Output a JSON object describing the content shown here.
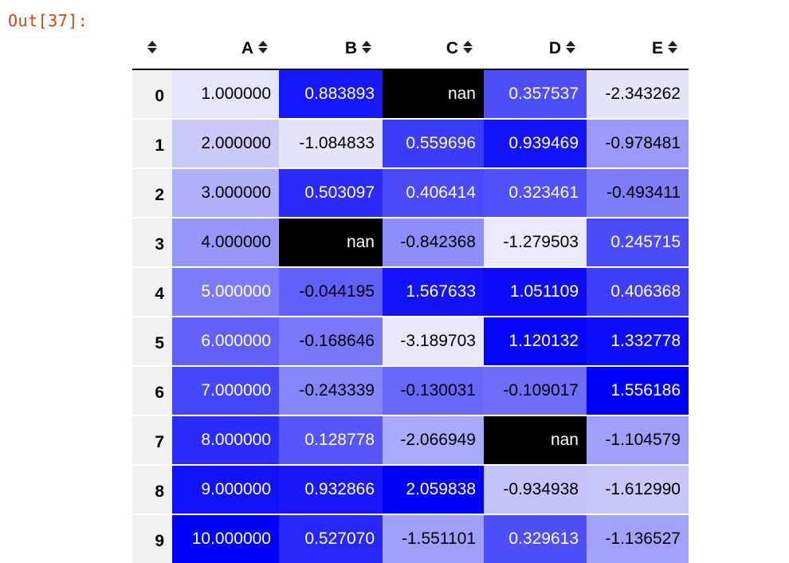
{
  "prompt": {
    "label": "Out[37]:"
  },
  "table": {
    "index_header": "",
    "columns": [
      "A",
      "B",
      "C",
      "D",
      "E"
    ],
    "rows": [
      {
        "index": "0",
        "cells": [
          {
            "text": "1.000000",
            "bg": "#e5e5fc",
            "fg": "#000000"
          },
          {
            "text": "0.883893",
            "bg": "#1717fc",
            "fg": "#ffffff"
          },
          {
            "text": "nan",
            "bg": "#000000",
            "fg": "#ffffff"
          },
          {
            "text": "0.357537",
            "bg": "#4d4dfa",
            "fg": "#ffffff"
          },
          {
            "text": "-2.343262",
            "bg": "#e5e5fa",
            "fg": "#000000"
          }
        ]
      },
      {
        "index": "1",
        "cells": [
          {
            "text": "2.000000",
            "bg": "#cacaf9",
            "fg": "#000000"
          },
          {
            "text": "-1.084833",
            "bg": "#e5e5fa",
            "fg": "#000000"
          },
          {
            "text": "0.559696",
            "bg": "#3b3bfa",
            "fg": "#ffffff"
          },
          {
            "text": "0.939469",
            "bg": "#1313fa",
            "fg": "#ffffff"
          },
          {
            "text": "-0.978481",
            "bg": "#9a9afa",
            "fg": "#000000"
          }
        ]
      },
      {
        "index": "2",
        "cells": [
          {
            "text": "3.000000",
            "bg": "#b1b1fb",
            "fg": "#000000"
          },
          {
            "text": "0.503097",
            "bg": "#2a2afb",
            "fg": "#ffffff"
          },
          {
            "text": "0.406414",
            "bg": "#4a4afa",
            "fg": "#ffffff"
          },
          {
            "text": "0.323461",
            "bg": "#5151fa",
            "fg": "#ffffff"
          },
          {
            "text": "-0.493411",
            "bg": "#7d7dfa",
            "fg": "#000000"
          }
        ]
      },
      {
        "index": "3",
        "cells": [
          {
            "text": "4.000000",
            "bg": "#9797fa",
            "fg": "#000000"
          },
          {
            "text": "nan",
            "bg": "#000000",
            "fg": "#ffffff"
          },
          {
            "text": "-0.842368",
            "bg": "#8e8efa",
            "fg": "#000000"
          },
          {
            "text": "-1.279503",
            "bg": "#eaeafa",
            "fg": "#000000"
          },
          {
            "text": "0.245715",
            "bg": "#4b4bfa",
            "fg": "#ffffff"
          }
        ]
      },
      {
        "index": "4",
        "cells": [
          {
            "text": "5.000000",
            "bg": "#7c7cfa",
            "fg": "#ffffff"
          },
          {
            "text": "-0.044195",
            "bg": "#6060fa",
            "fg": "#000000"
          },
          {
            "text": "1.567633",
            "bg": "#1212fa",
            "fg": "#ffffff"
          },
          {
            "text": "1.051109",
            "bg": "#0b0bfa",
            "fg": "#ffffff"
          },
          {
            "text": "0.406368",
            "bg": "#3d3dfa",
            "fg": "#ffffff"
          }
        ]
      },
      {
        "index": "5",
        "cells": [
          {
            "text": "6.000000",
            "bg": "#6161fa",
            "fg": "#ffffff"
          },
          {
            "text": "-0.168646",
            "bg": "#7878fa",
            "fg": "#000000"
          },
          {
            "text": "-3.189703",
            "bg": "#e8e8fa",
            "fg": "#000000"
          },
          {
            "text": "1.120132",
            "bg": "#0606fa",
            "fg": "#ffffff"
          },
          {
            "text": "1.332778",
            "bg": "#0d0dfa",
            "fg": "#ffffff"
          }
        ]
      },
      {
        "index": "6",
        "cells": [
          {
            "text": "7.000000",
            "bg": "#4646fa",
            "fg": "#ffffff"
          },
          {
            "text": "-0.243339",
            "bg": "#8585fa",
            "fg": "#000000"
          },
          {
            "text": "-0.130031",
            "bg": "#6767fa",
            "fg": "#000000"
          },
          {
            "text": "-0.109017",
            "bg": "#6e6efa",
            "fg": "#000000"
          },
          {
            "text": "1.556186",
            "bg": "#0000fa",
            "fg": "#ffffff"
          }
        ]
      },
      {
        "index": "7",
        "cells": [
          {
            "text": "8.000000",
            "bg": "#2c2cfa",
            "fg": "#ffffff"
          },
          {
            "text": "0.128778",
            "bg": "#5656fa",
            "fg": "#ffffff"
          },
          {
            "text": "-2.066949",
            "bg": "#aaaafa",
            "fg": "#000000"
          },
          {
            "text": "nan",
            "bg": "#000000",
            "fg": "#ffffff"
          },
          {
            "text": "-1.104579",
            "bg": "#a0a0fa",
            "fg": "#000000"
          }
        ]
      },
      {
        "index": "8",
        "cells": [
          {
            "text": "9.000000",
            "bg": "#1111fa",
            "fg": "#ffffff"
          },
          {
            "text": "0.932866",
            "bg": "#1818fa",
            "fg": "#ffffff"
          },
          {
            "text": "2.059838",
            "bg": "#0000fa",
            "fg": "#ffffff"
          },
          {
            "text": "-0.934938",
            "bg": "#c4c4fa",
            "fg": "#000000"
          },
          {
            "text": "-1.612990",
            "bg": "#c7c7fa",
            "fg": "#000000"
          }
        ]
      },
      {
        "index": "9",
        "cells": [
          {
            "text": "10.000000",
            "bg": "#0000fa",
            "fg": "#ffffff"
          },
          {
            "text": "0.527070",
            "bg": "#2727fa",
            "fg": "#ffffff"
          },
          {
            "text": "-1.551101",
            "bg": "#a0a0fa",
            "fg": "#000000"
          },
          {
            "text": "0.329613",
            "bg": "#4f4ffa",
            "fg": "#ffffff"
          },
          {
            "text": "-1.136527",
            "bg": "#a2a2fa",
            "fg": "#000000"
          }
        ]
      }
    ]
  },
  "icons": {
    "sort": "sort-arrows-icon"
  }
}
